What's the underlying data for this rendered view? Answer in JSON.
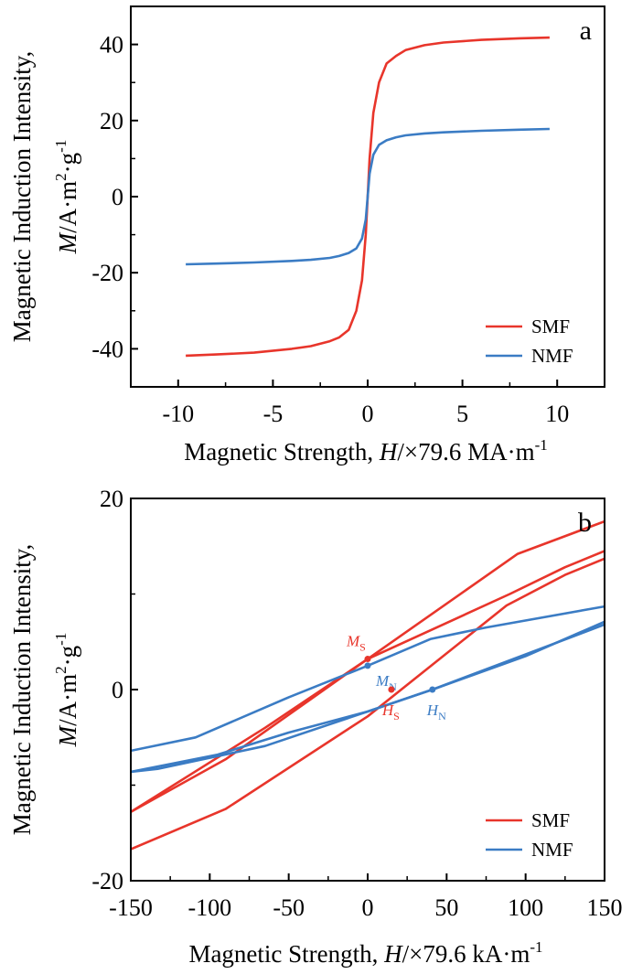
{
  "chart_data": [
    {
      "panel": "a",
      "type": "line",
      "xlabel": {
        "prefix": "Magnetic Strength, ",
        "var": "H",
        "unit": "/×79.6 MA·m",
        "exp": "-1"
      },
      "ylabel": {
        "line1": "Magnetic Induction Intensity,",
        "var": "M",
        "unit": "/A·m",
        "sq": "2",
        "mid": "·g",
        "exp": "-1"
      },
      "xlim": [
        -12.5,
        12.5
      ],
      "ylim": [
        -50,
        50
      ],
      "xticks": [
        -10,
        -5,
        0,
        5,
        10
      ],
      "yticks": [
        -40,
        -20,
        0,
        20,
        40
      ],
      "xtick_labels": [
        "-10",
        "-5",
        "0",
        "5",
        "10"
      ],
      "ytick_labels": [
        "-40",
        "-20",
        "0",
        "20",
        "40"
      ],
      "legend_position": "bottom-right",
      "series": [
        {
          "name": "SMF",
          "color": "#e8352b",
          "x": [
            -9.6,
            -8,
            -6,
            -4,
            -3,
            -2,
            -1.5,
            -1.0,
            -0.6,
            -0.3,
            -0.1,
            0,
            0.1,
            0.3,
            0.6,
            1.0,
            1.5,
            2,
            3,
            4,
            6,
            8,
            9.6
          ],
          "y": [
            -41.8,
            -41.5,
            -41,
            -40,
            -39.3,
            -38,
            -37,
            -35,
            -30,
            -22,
            -10,
            0,
            10,
            22,
            30,
            35,
            37,
            38.5,
            39.8,
            40.5,
            41.2,
            41.6,
            41.8
          ]
        },
        {
          "name": "NMF",
          "color": "#3b7cc4",
          "x": [
            -9.6,
            -8,
            -6,
            -4,
            -3,
            -2,
            -1.5,
            -1.0,
            -0.6,
            -0.3,
            -0.1,
            0,
            0.1,
            0.3,
            0.6,
            1.0,
            1.5,
            2,
            3,
            4,
            6,
            8,
            9.6
          ],
          "y": [
            -17.8,
            -17.6,
            -17.3,
            -16.9,
            -16.6,
            -16.1,
            -15.6,
            -14.8,
            -13.6,
            -11,
            -6,
            0,
            6,
            11,
            13.6,
            14.8,
            15.6,
            16.1,
            16.6,
            16.9,
            17.3,
            17.6,
            17.8
          ]
        }
      ]
    },
    {
      "panel": "b",
      "type": "line",
      "xlabel": {
        "prefix": "Magnetic Strength, ",
        "var": "H",
        "unit": "/×79.6 kA·m",
        "exp": "-1"
      },
      "ylabel": {
        "line1": "Magnetic Induction Intensity,",
        "var": "M",
        "unit": "/A·m",
        "sq": "2",
        "mid": "·g",
        "exp": "-1"
      },
      "xlim": [
        -150,
        150
      ],
      "ylim": [
        -20,
        20
      ],
      "xticks": [
        -150,
        -100,
        -50,
        0,
        50,
        100,
        150
      ],
      "yticks": [
        -20,
        0,
        20
      ],
      "xtick_labels": [
        "-150",
        "-100",
        "-50",
        "0",
        "50",
        "100",
        "150"
      ],
      "ytick_labels": [
        "-20",
        "0",
        "20"
      ],
      "legend_position": "bottom-right",
      "series": [
        {
          "name": "SMF",
          "color": "#e8352b",
          "paths": [
            {
              "x": [
                -150,
                -90,
                0,
                95,
                150
              ],
              "y": [
                -12.8,
                -7.3,
                3.2,
                14.2,
                17.6
              ]
            },
            {
              "x": [
                -150,
                -90,
                0,
                88,
                125,
                150
              ],
              "y": [
                -16.7,
                -12.5,
                -2.8,
                8.8,
                12.0,
                13.7
              ]
            },
            {
              "x": [
                -150,
                -65,
                0,
                90,
                125,
                150
              ],
              "y": [
                -12.8,
                -4.0,
                3.2,
                10.0,
                12.8,
                14.5
              ]
            }
          ]
        },
        {
          "name": "NMF",
          "color": "#3b7cc4",
          "paths": [
            {
              "x": [
                -150,
                -109,
                -50,
                0,
                40,
                75,
                150
              ],
              "y": [
                -6.4,
                -5.0,
                -0.8,
                2.5,
                5.3,
                6.5,
                8.7
              ]
            },
            {
              "x": [
                -150,
                -133,
                -65,
                0,
                41,
                150
              ],
              "y": [
                -8.6,
                -8.3,
                -5.9,
                -2.3,
                0.0,
                6.8
              ]
            },
            {
              "x": [
                -150,
                -95,
                -50,
                0,
                41,
                100,
                150
              ],
              "y": [
                -8.6,
                -6.8,
                -4.5,
                -2.3,
                0.0,
                3.5,
                7.1
              ]
            }
          ]
        }
      ],
      "annotations": [
        {
          "main": "M",
          "sub": "S",
          "x": 0,
          "y": 3.2,
          "color": "#e8352b"
        },
        {
          "main": "M",
          "sub": "N",
          "x": 0,
          "y": 2.5,
          "color": "#3b7cc4"
        },
        {
          "main": "H",
          "sub": "S",
          "x": 15,
          "y": 0.0,
          "color": "#e8352b"
        },
        {
          "main": "H",
          "sub": "N",
          "x": 41,
          "y": 0.0,
          "color": "#3b7cc4"
        }
      ]
    }
  ],
  "legend": [
    {
      "label": "SMF",
      "color": "#e8352b"
    },
    {
      "label": "NMF",
      "color": "#3b7cc4"
    }
  ]
}
